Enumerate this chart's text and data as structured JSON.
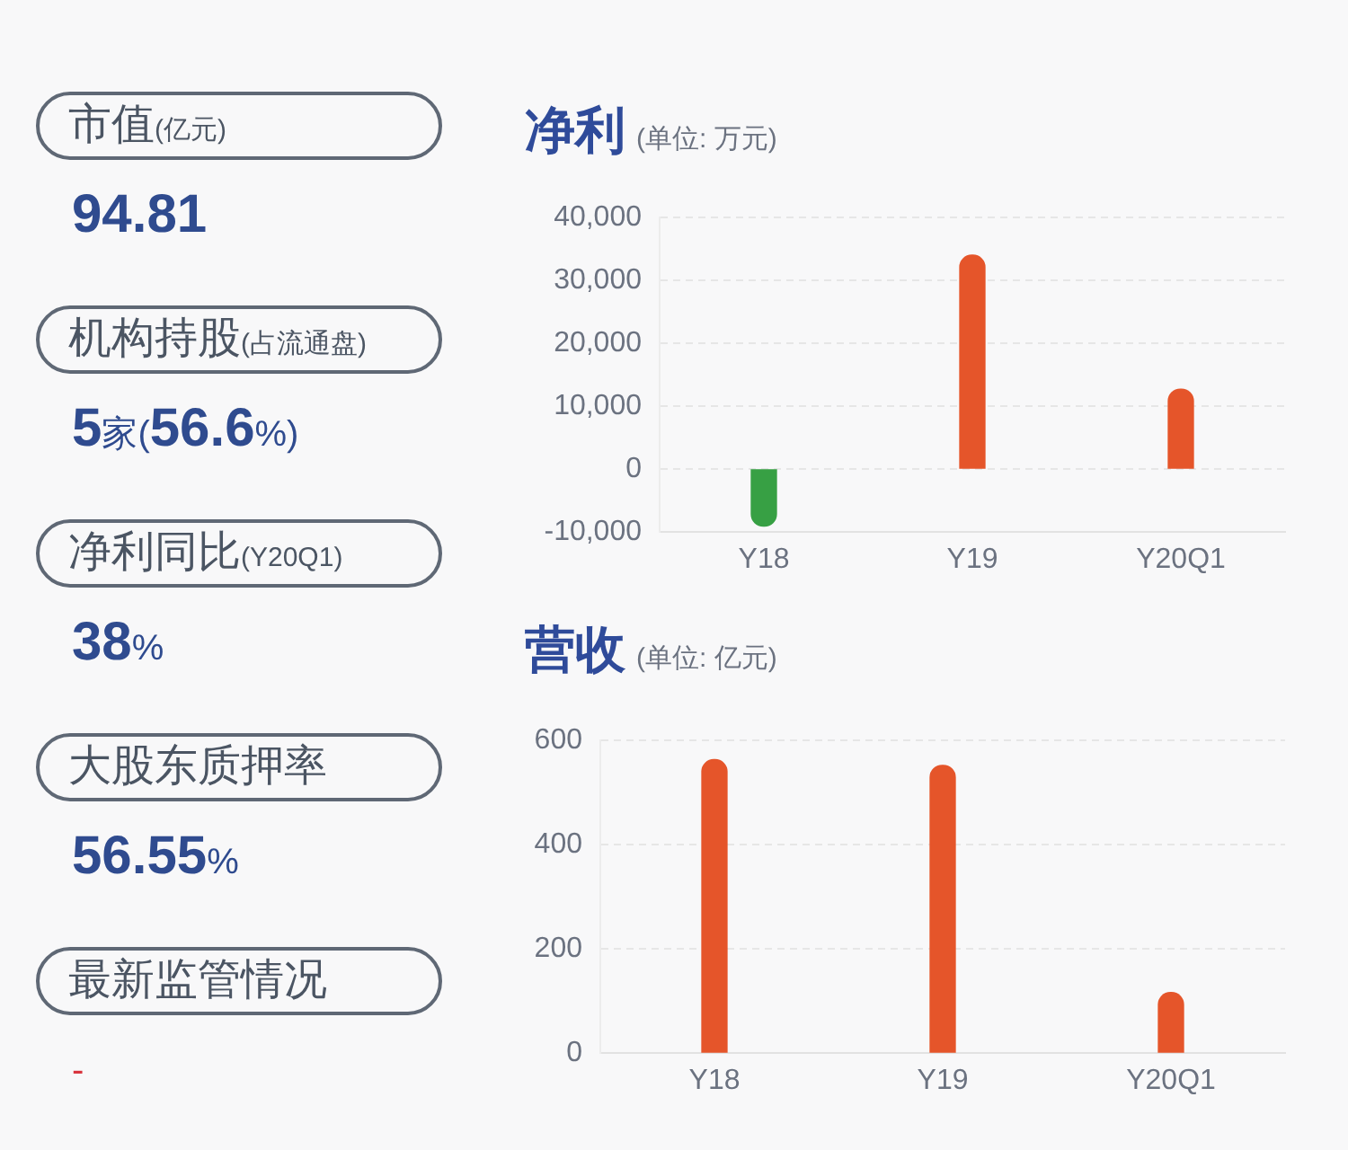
{
  "chart_data": [
    {
      "type": "other",
      "annotations": [
        "市值(亿元)",
        "94.81",
        "机构持股(占流通盘)",
        "5家(56.6%)",
        "净利同比(Y20Q1)",
        "38%",
        "大股东质押率",
        "56.55%",
        "最新监管情况",
        "-"
      ],
      "colors": [
        "#4b5563",
        "#2f4b8f",
        "#4b5563",
        "#2f4b8f",
        "#4b5563",
        "#2f4b8f",
        "#4b5563",
        "#2f4b8f",
        "#4b5563",
        "#d8323c"
      ]
    },
    {
      "type": "bar",
      "title": "净利",
      "subtitle": "(单位: 万元)",
      "categories": [
        "Y18",
        "Y19",
        "Y20Q1"
      ],
      "values": [
        -9100,
        34000,
        12700
      ],
      "colors": [
        "#37a044",
        "#e5552a",
        "#e5552a"
      ],
      "ylim": [
        -10000,
        40000
      ],
      "yticks": [
        {
          "value": -10000,
          "label": "-10,000"
        },
        0,
        {
          "value": 10000,
          "label": "10,000"
        },
        {
          "value": 20000,
          "label": "20,000"
        },
        {
          "value": 30000,
          "label": "30,000"
        },
        {
          "value": 40000,
          "label": "40,000"
        }
      ],
      "grid": "y"
    },
    {
      "type": "bar",
      "title": "营收",
      "subtitle": "(单位: 亿元)",
      "categories": [
        "Y18",
        "Y19",
        "Y20Q1"
      ],
      "values": [
        563,
        552,
        116
      ],
      "color": "#e5552a",
      "ylim": [
        0,
        600
      ],
      "yticks": [
        0,
        200,
        400,
        600
      ],
      "grid": "y"
    }
  ]
}
